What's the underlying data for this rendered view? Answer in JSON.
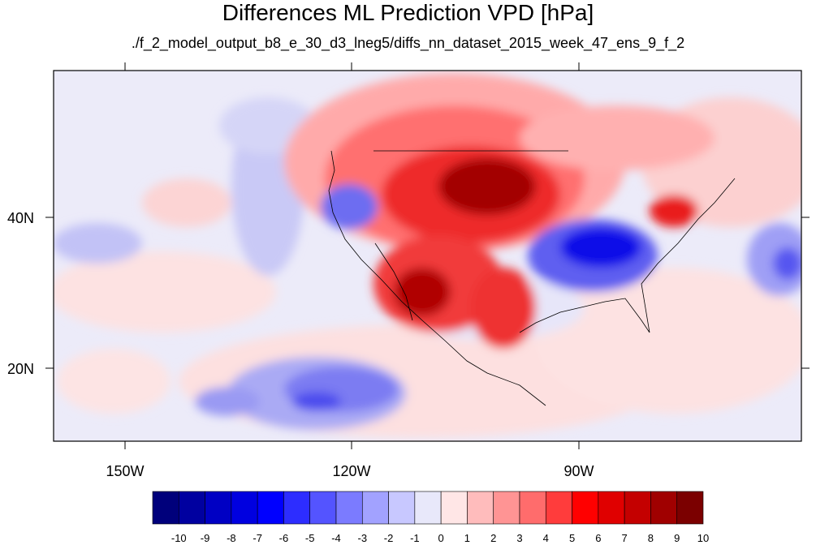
{
  "title": "Differences ML Prediction VPD [hPa]",
  "subtitle": "./f_2_model_output_b8_e_30_d3_lneg5/diffs_nn_dataset_2015_week_47_ens_9_f_2",
  "map": {
    "lat_labels": [
      "40N",
      "20N"
    ],
    "lon_labels": [
      "150W",
      "120W",
      "90W"
    ]
  },
  "colorbar": {
    "tick_labels": [
      "-10",
      "-9",
      "-8",
      "-7",
      "-6",
      "-5",
      "-4",
      "-3",
      "-2",
      "-1",
      "0",
      "1",
      "2",
      "3",
      "4",
      "5",
      "6",
      "7",
      "8",
      "9",
      "10"
    ],
    "colors": [
      "#00007b",
      "#0000a0",
      "#0000c4",
      "#0000e0",
      "#0000ff",
      "#2d2dff",
      "#5454ff",
      "#7b7bff",
      "#a2a2ff",
      "#c8c8ff",
      "#e8e8fa",
      "#ffe6e6",
      "#ffbcbc",
      "#ff9494",
      "#ff6c6c",
      "#ff3c3c",
      "#ff0000",
      "#e00000",
      "#c40000",
      "#a00000",
      "#7b0000"
    ]
  }
}
